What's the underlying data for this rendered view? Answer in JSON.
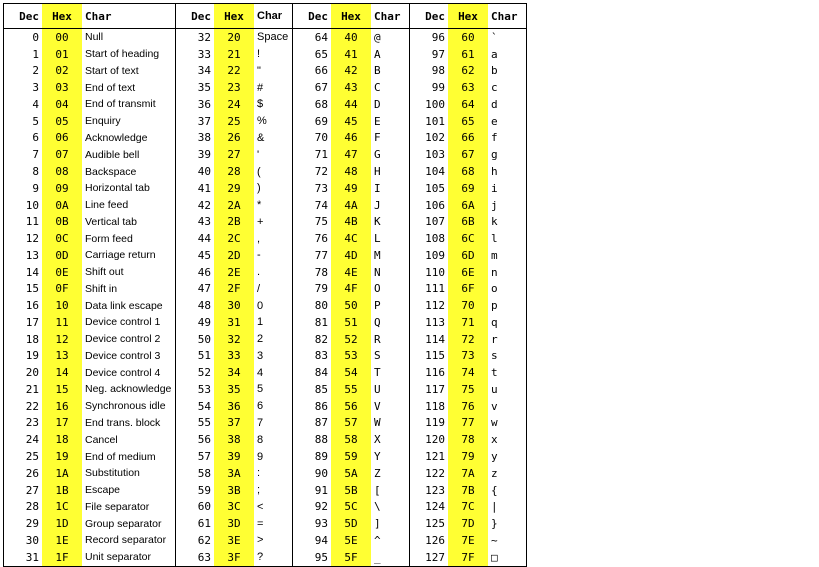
{
  "headers": {
    "dec": "Dec",
    "hex": "Hex",
    "char": "Char"
  },
  "blocks": [
    {
      "rows": [
        {
          "dec": "0",
          "hex": "00",
          "char": "Null"
        },
        {
          "dec": "1",
          "hex": "01",
          "char": "Start of heading"
        },
        {
          "dec": "2",
          "hex": "02",
          "char": "Start of text"
        },
        {
          "dec": "3",
          "hex": "03",
          "char": "End of text"
        },
        {
          "dec": "4",
          "hex": "04",
          "char": "End of transmit"
        },
        {
          "dec": "5",
          "hex": "05",
          "char": "Enquiry"
        },
        {
          "dec": "6",
          "hex": "06",
          "char": "Acknowledge"
        },
        {
          "dec": "7",
          "hex": "07",
          "char": "Audible bell"
        },
        {
          "dec": "8",
          "hex": "08",
          "char": "Backspace"
        },
        {
          "dec": "9",
          "hex": "09",
          "char": "Horizontal tab"
        },
        {
          "dec": "10",
          "hex": "0A",
          "char": "Line feed"
        },
        {
          "dec": "11",
          "hex": "0B",
          "char": "Vertical tab"
        },
        {
          "dec": "12",
          "hex": "0C",
          "char": "Form feed"
        },
        {
          "dec": "13",
          "hex": "0D",
          "char": "Carriage return"
        },
        {
          "dec": "14",
          "hex": "0E",
          "char": "Shift out"
        },
        {
          "dec": "15",
          "hex": "0F",
          "char": "Shift in"
        },
        {
          "dec": "16",
          "hex": "10",
          "char": "Data link escape"
        },
        {
          "dec": "17",
          "hex": "11",
          "char": "Device control 1"
        },
        {
          "dec": "18",
          "hex": "12",
          "char": "Device control 2"
        },
        {
          "dec": "19",
          "hex": "13",
          "char": "Device control 3"
        },
        {
          "dec": "20",
          "hex": "14",
          "char": "Device control 4"
        },
        {
          "dec": "21",
          "hex": "15",
          "char": "Neg. acknowledge"
        },
        {
          "dec": "22",
          "hex": "16",
          "char": "Synchronous idle"
        },
        {
          "dec": "23",
          "hex": "17",
          "char": "End trans. block"
        },
        {
          "dec": "24",
          "hex": "18",
          "char": "Cancel"
        },
        {
          "dec": "25",
          "hex": "19",
          "char": "End of medium"
        },
        {
          "dec": "26",
          "hex": "1A",
          "char": "Substitution"
        },
        {
          "dec": "27",
          "hex": "1B",
          "char": "Escape"
        },
        {
          "dec": "28",
          "hex": "1C",
          "char": "File separator"
        },
        {
          "dec": "29",
          "hex": "1D",
          "char": "Group separator"
        },
        {
          "dec": "30",
          "hex": "1E",
          "char": "Record separator"
        },
        {
          "dec": "31",
          "hex": "1F",
          "char": "Unit separator"
        }
      ]
    },
    {
      "rows": [
        {
          "dec": "32",
          "hex": "20",
          "char": "Space"
        },
        {
          "dec": "33",
          "hex": "21",
          "char": "!"
        },
        {
          "dec": "34",
          "hex": "22",
          "char": "\""
        },
        {
          "dec": "35",
          "hex": "23",
          "char": "#"
        },
        {
          "dec": "36",
          "hex": "24",
          "char": "$"
        },
        {
          "dec": "37",
          "hex": "25",
          "char": "%"
        },
        {
          "dec": "38",
          "hex": "26",
          "char": "&"
        },
        {
          "dec": "39",
          "hex": "27",
          "char": "'"
        },
        {
          "dec": "40",
          "hex": "28",
          "char": "("
        },
        {
          "dec": "41",
          "hex": "29",
          "char": ")"
        },
        {
          "dec": "42",
          "hex": "2A",
          "char": "*"
        },
        {
          "dec": "43",
          "hex": "2B",
          "char": "+"
        },
        {
          "dec": "44",
          "hex": "2C",
          "char": ","
        },
        {
          "dec": "45",
          "hex": "2D",
          "char": "-"
        },
        {
          "dec": "46",
          "hex": "2E",
          "char": "."
        },
        {
          "dec": "47",
          "hex": "2F",
          "char": "/"
        },
        {
          "dec": "48",
          "hex": "30",
          "char": "0"
        },
        {
          "dec": "49",
          "hex": "31",
          "char": "1"
        },
        {
          "dec": "50",
          "hex": "32",
          "char": "2"
        },
        {
          "dec": "51",
          "hex": "33",
          "char": "3"
        },
        {
          "dec": "52",
          "hex": "34",
          "char": "4"
        },
        {
          "dec": "53",
          "hex": "35",
          "char": "5"
        },
        {
          "dec": "54",
          "hex": "36",
          "char": "6"
        },
        {
          "dec": "55",
          "hex": "37",
          "char": "7"
        },
        {
          "dec": "56",
          "hex": "38",
          "char": "8"
        },
        {
          "dec": "57",
          "hex": "39",
          "char": "9"
        },
        {
          "dec": "58",
          "hex": "3A",
          "char": ":"
        },
        {
          "dec": "59",
          "hex": "3B",
          "char": ";"
        },
        {
          "dec": "60",
          "hex": "3C",
          "char": "<"
        },
        {
          "dec": "61",
          "hex": "3D",
          "char": "="
        },
        {
          "dec": "62",
          "hex": "3E",
          "char": ">"
        },
        {
          "dec": "63",
          "hex": "3F",
          "char": "?"
        }
      ]
    },
    {
      "rows": [
        {
          "dec": "64",
          "hex": "40",
          "char": "@"
        },
        {
          "dec": "65",
          "hex": "41",
          "char": "A"
        },
        {
          "dec": "66",
          "hex": "42",
          "char": "B"
        },
        {
          "dec": "67",
          "hex": "43",
          "char": "C"
        },
        {
          "dec": "68",
          "hex": "44",
          "char": "D"
        },
        {
          "dec": "69",
          "hex": "45",
          "char": "E"
        },
        {
          "dec": "70",
          "hex": "46",
          "char": "F"
        },
        {
          "dec": "71",
          "hex": "47",
          "char": "G"
        },
        {
          "dec": "72",
          "hex": "48",
          "char": "H"
        },
        {
          "dec": "73",
          "hex": "49",
          "char": "I"
        },
        {
          "dec": "74",
          "hex": "4A",
          "char": "J"
        },
        {
          "dec": "75",
          "hex": "4B",
          "char": "K"
        },
        {
          "dec": "76",
          "hex": "4C",
          "char": "L"
        },
        {
          "dec": "77",
          "hex": "4D",
          "char": "M"
        },
        {
          "dec": "78",
          "hex": "4E",
          "char": "N"
        },
        {
          "dec": "79",
          "hex": "4F",
          "char": "O"
        },
        {
          "dec": "80",
          "hex": "50",
          "char": "P"
        },
        {
          "dec": "81",
          "hex": "51",
          "char": "Q"
        },
        {
          "dec": "82",
          "hex": "52",
          "char": "R"
        },
        {
          "dec": "83",
          "hex": "53",
          "char": "S"
        },
        {
          "dec": "84",
          "hex": "54",
          "char": "T"
        },
        {
          "dec": "85",
          "hex": "55",
          "char": "U"
        },
        {
          "dec": "86",
          "hex": "56",
          "char": "V"
        },
        {
          "dec": "87",
          "hex": "57",
          "char": "W"
        },
        {
          "dec": "88",
          "hex": "58",
          "char": "X"
        },
        {
          "dec": "89",
          "hex": "59",
          "char": "Y"
        },
        {
          "dec": "90",
          "hex": "5A",
          "char": "Z"
        },
        {
          "dec": "91",
          "hex": "5B",
          "char": "["
        },
        {
          "dec": "92",
          "hex": "5C",
          "char": "\\"
        },
        {
          "dec": "93",
          "hex": "5D",
          "char": "]"
        },
        {
          "dec": "94",
          "hex": "5E",
          "char": "^"
        },
        {
          "dec": "95",
          "hex": "5F",
          "char": "_"
        }
      ]
    },
    {
      "rows": [
        {
          "dec": "96",
          "hex": "60",
          "char": "`"
        },
        {
          "dec": "97",
          "hex": "61",
          "char": "a"
        },
        {
          "dec": "98",
          "hex": "62",
          "char": "b"
        },
        {
          "dec": "99",
          "hex": "63",
          "char": "c"
        },
        {
          "dec": "100",
          "hex": "64",
          "char": "d"
        },
        {
          "dec": "101",
          "hex": "65",
          "char": "e"
        },
        {
          "dec": "102",
          "hex": "66",
          "char": "f"
        },
        {
          "dec": "103",
          "hex": "67",
          "char": "g"
        },
        {
          "dec": "104",
          "hex": "68",
          "char": "h"
        },
        {
          "dec": "105",
          "hex": "69",
          "char": "i"
        },
        {
          "dec": "106",
          "hex": "6A",
          "char": "j"
        },
        {
          "dec": "107",
          "hex": "6B",
          "char": "k"
        },
        {
          "dec": "108",
          "hex": "6C",
          "char": "l"
        },
        {
          "dec": "109",
          "hex": "6D",
          "char": "m"
        },
        {
          "dec": "110",
          "hex": "6E",
          "char": "n"
        },
        {
          "dec": "111",
          "hex": "6F",
          "char": "o"
        },
        {
          "dec": "112",
          "hex": "70",
          "char": "p"
        },
        {
          "dec": "113",
          "hex": "71",
          "char": "q"
        },
        {
          "dec": "114",
          "hex": "72",
          "char": "r"
        },
        {
          "dec": "115",
          "hex": "73",
          "char": "s"
        },
        {
          "dec": "116",
          "hex": "74",
          "char": "t"
        },
        {
          "dec": "117",
          "hex": "75",
          "char": "u"
        },
        {
          "dec": "118",
          "hex": "76",
          "char": "v"
        },
        {
          "dec": "119",
          "hex": "77",
          "char": "w"
        },
        {
          "dec": "120",
          "hex": "78",
          "char": "x"
        },
        {
          "dec": "121",
          "hex": "79",
          "char": "y"
        },
        {
          "dec": "122",
          "hex": "7A",
          "char": "z"
        },
        {
          "dec": "123",
          "hex": "7B",
          "char": "{"
        },
        {
          "dec": "124",
          "hex": "7C",
          "char": "|"
        },
        {
          "dec": "125",
          "hex": "7D",
          "char": "}"
        },
        {
          "dec": "126",
          "hex": "7E",
          "char": "~"
        },
        {
          "dec": "127",
          "hex": "7F",
          "char": "□"
        }
      ]
    }
  ]
}
